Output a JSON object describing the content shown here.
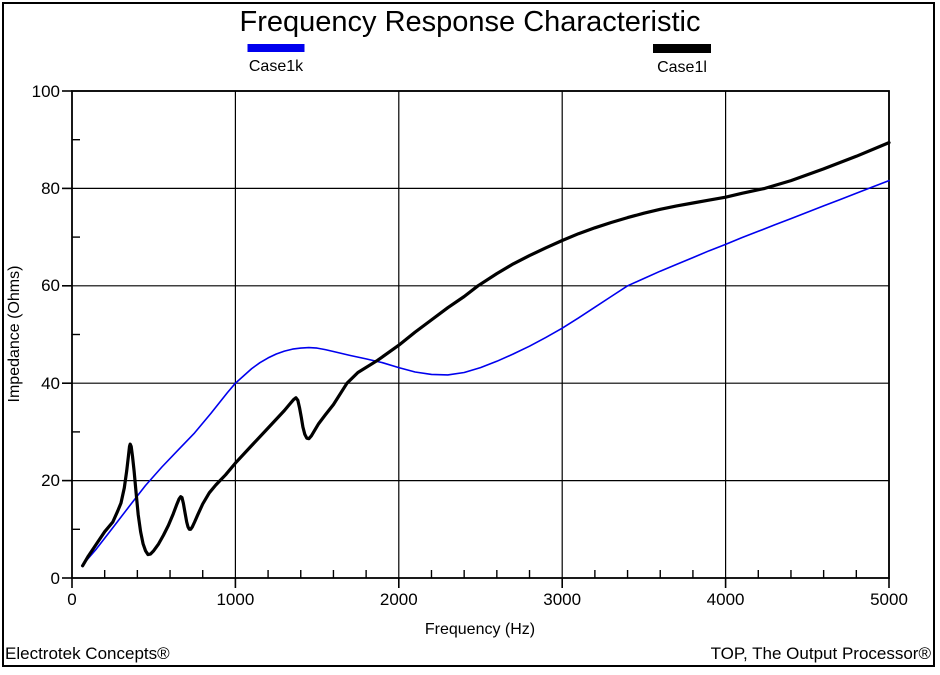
{
  "footer": {
    "left": "Electrotek Concepts®",
    "right": "TOP, The Output Processor®"
  },
  "chart_data": {
    "type": "line",
    "title": "Frequency Response Characteristic",
    "xlabel": "Frequency (Hz)",
    "ylabel": "Impedance (Ohms)",
    "xlim": [
      0,
      5000
    ],
    "ylim": [
      0,
      100
    ],
    "x_major_ticks": [
      0,
      1000,
      2000,
      3000,
      4000,
      5000
    ],
    "x_minor_step": 200,
    "y_major_ticks": [
      0,
      20,
      40,
      60,
      80,
      100
    ],
    "y_minor_step": 10,
    "grid": "major-both",
    "legend_position": "top",
    "plot_border_color": "#000000",
    "background_color": "#ffffff",
    "series": [
      {
        "name": "Case1k",
        "color": "#0000EE",
        "line_width": 1.6,
        "points": [
          [
            60,
            2.5
          ],
          [
            150,
            6
          ],
          [
            250,
            10.3
          ],
          [
            350,
            14.7
          ],
          [
            450,
            19
          ],
          [
            550,
            22.8
          ],
          [
            650,
            26.3
          ],
          [
            750,
            29.8
          ],
          [
            850,
            33.8
          ],
          [
            950,
            38
          ],
          [
            1000,
            40
          ],
          [
            1050,
            41.5
          ],
          [
            1100,
            43
          ],
          [
            1150,
            44.2
          ],
          [
            1200,
            45.2
          ],
          [
            1250,
            46
          ],
          [
            1300,
            46.6
          ],
          [
            1350,
            47
          ],
          [
            1400,
            47.2
          ],
          [
            1450,
            47.3
          ],
          [
            1500,
            47.2
          ],
          [
            1550,
            46.9
          ],
          [
            1600,
            46.5
          ],
          [
            1700,
            45.7
          ],
          [
            1800,
            45.0
          ],
          [
            1900,
            44.2
          ],
          [
            2000,
            43.2
          ],
          [
            2100,
            42.3
          ],
          [
            2200,
            41.8
          ],
          [
            2300,
            41.7
          ],
          [
            2400,
            42.2
          ],
          [
            2500,
            43.2
          ],
          [
            2600,
            44.5
          ],
          [
            2700,
            46
          ],
          [
            2800,
            47.6
          ],
          [
            2900,
            49.4
          ],
          [
            3000,
            51.3
          ],
          [
            3100,
            53.4
          ],
          [
            3200,
            55.6
          ],
          [
            3300,
            57.8
          ],
          [
            3400,
            60
          ],
          [
            3500,
            61.5
          ],
          [
            3600,
            63
          ],
          [
            3700,
            64.4
          ],
          [
            3800,
            65.8
          ],
          [
            3900,
            67.2
          ],
          [
            4000,
            68.5
          ],
          [
            4100,
            69.9
          ],
          [
            4200,
            71.2
          ],
          [
            4300,
            72.5
          ],
          [
            4400,
            73.8
          ],
          [
            4500,
            75.1
          ],
          [
            4600,
            76.4
          ],
          [
            4700,
            77.7
          ],
          [
            4800,
            79
          ],
          [
            4900,
            80.3
          ],
          [
            5000,
            81.6
          ]
        ]
      },
      {
        "name": "Case1l",
        "color": "#000000",
        "line_width": 3.2,
        "points": [
          [
            65,
            2.5
          ],
          [
            100,
            4.5
          ],
          [
            150,
            7
          ],
          [
            200,
            9.5
          ],
          [
            250,
            11.5
          ],
          [
            280,
            13.8
          ],
          [
            300,
            15.4
          ],
          [
            320,
            18.5
          ],
          [
            335,
            22
          ],
          [
            345,
            25
          ],
          [
            352,
            27
          ],
          [
            356,
            27.5
          ],
          [
            362,
            27
          ],
          [
            370,
            25
          ],
          [
            380,
            22
          ],
          [
            392,
            17.5
          ],
          [
            405,
            13
          ],
          [
            420,
            9.5
          ],
          [
            435,
            7
          ],
          [
            450,
            5.6
          ],
          [
            465,
            4.8
          ],
          [
            480,
            4.9
          ],
          [
            500,
            5.6
          ],
          [
            530,
            7
          ],
          [
            560,
            8.8
          ],
          [
            590,
            10.8
          ],
          [
            620,
            13.2
          ],
          [
            640,
            15
          ],
          [
            655,
            16.2
          ],
          [
            665,
            16.7
          ],
          [
            673,
            16.5
          ],
          [
            682,
            15.3
          ],
          [
            692,
            13.3
          ],
          [
            702,
            11.5
          ],
          [
            710,
            10.5
          ],
          [
            718,
            10.0
          ],
          [
            726,
            10.0
          ],
          [
            736,
            10.5
          ],
          [
            750,
            11.5
          ],
          [
            770,
            13
          ],
          [
            800,
            15.2
          ],
          [
            840,
            17.5
          ],
          [
            880,
            19.1
          ],
          [
            906,
            20
          ],
          [
            940,
            21.2
          ],
          [
            1000,
            23.6
          ],
          [
            1100,
            27.2
          ],
          [
            1200,
            30.8
          ],
          [
            1300,
            34.4
          ],
          [
            1330,
            35.6
          ],
          [
            1355,
            36.6
          ],
          [
            1370,
            37
          ],
          [
            1382,
            36.5
          ],
          [
            1392,
            35
          ],
          [
            1403,
            33
          ],
          [
            1413,
            31
          ],
          [
            1425,
            29.5
          ],
          [
            1437,
            28.7
          ],
          [
            1450,
            28.6
          ],
          [
            1465,
            29.2
          ],
          [
            1485,
            30.3
          ],
          [
            1510,
            31.7
          ],
          [
            1550,
            33.5
          ],
          [
            1600,
            35.6
          ],
          [
            1683,
            40
          ],
          [
            1750,
            42.2
          ],
          [
            1870,
            44.7
          ],
          [
            2000,
            47.8
          ],
          [
            2100,
            50.5
          ],
          [
            2200,
            53
          ],
          [
            2300,
            55.5
          ],
          [
            2400,
            57.8
          ],
          [
            2485,
            60
          ],
          [
            2600,
            62.5
          ],
          [
            2700,
            64.5
          ],
          [
            2800,
            66.2
          ],
          [
            2900,
            67.8
          ],
          [
            3000,
            69.3
          ],
          [
            3100,
            70.7
          ],
          [
            3200,
            71.9
          ],
          [
            3300,
            73
          ],
          [
            3400,
            74
          ],
          [
            3500,
            74.9
          ],
          [
            3600,
            75.7
          ],
          [
            3700,
            76.4
          ],
          [
            3800,
            77
          ],
          [
            3900,
            77.6
          ],
          [
            4000,
            78.2
          ],
          [
            4100,
            79
          ],
          [
            4240,
            80
          ],
          [
            4400,
            81.6
          ],
          [
            4600,
            84
          ],
          [
            4800,
            86.6
          ],
          [
            5000,
            89.4
          ]
        ]
      }
    ]
  }
}
